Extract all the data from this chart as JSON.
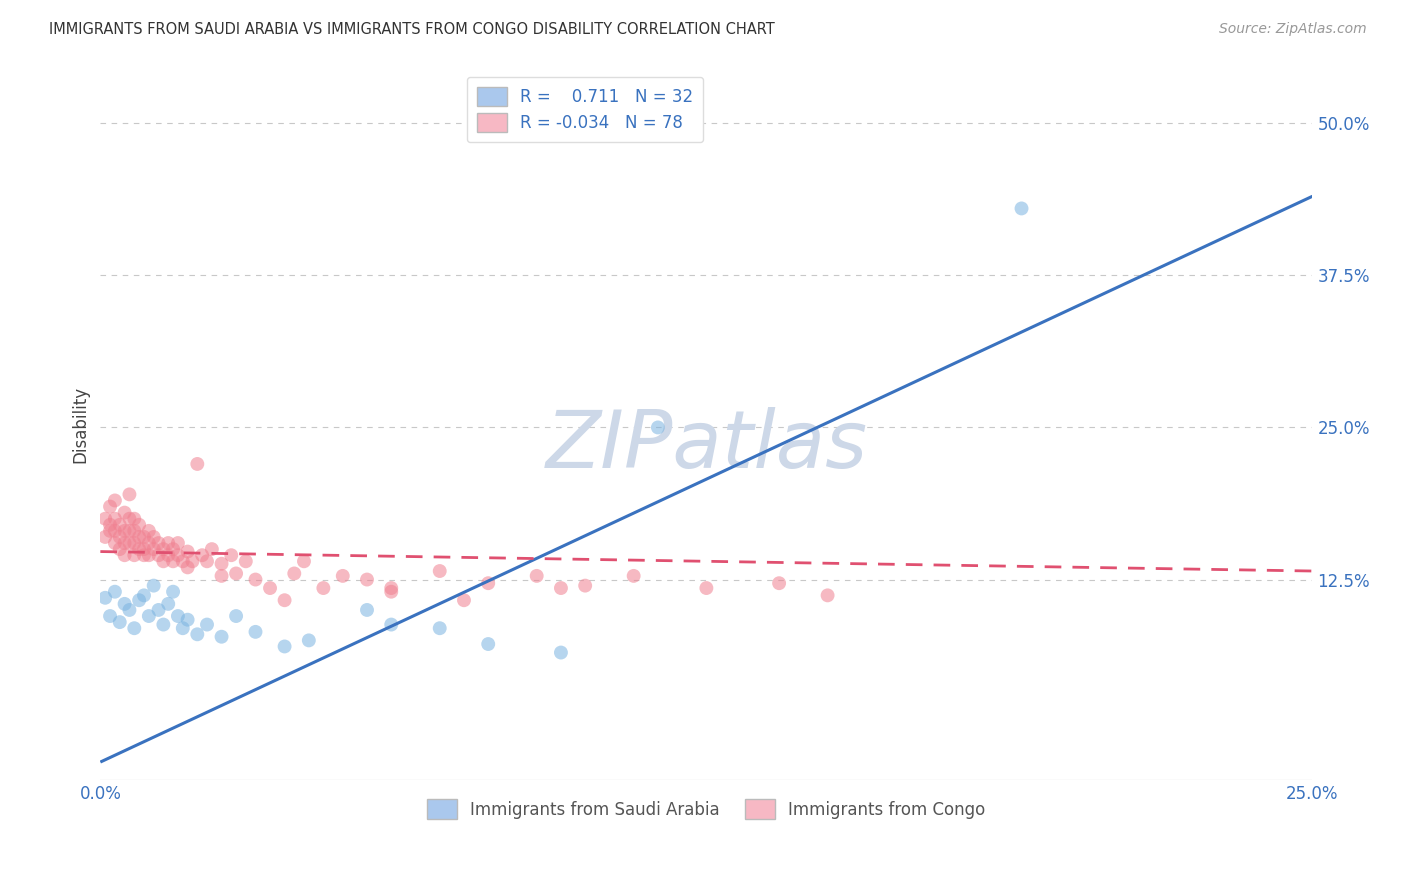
{
  "title": "IMMIGRANTS FROM SAUDI ARABIA VS IMMIGRANTS FROM CONGO DISABILITY CORRELATION CHART",
  "source": "Source: ZipAtlas.com",
  "ylabel": "Disability",
  "ytick_labels": [
    "12.5%",
    "25.0%",
    "37.5%",
    "50.0%"
  ],
  "ytick_values": [
    0.125,
    0.25,
    0.375,
    0.5
  ],
  "xlim": [
    0.0,
    0.25
  ],
  "ylim": [
    -0.04,
    0.545
  ],
  "legend_blue_color": "#aac8ed",
  "legend_pink_color": "#f7b8c4",
  "dot_blue_color": "#7ab3e0",
  "dot_pink_color": "#f08090",
  "line_blue_color": "#3a72bf",
  "line_pink_color": "#e05070",
  "watermark_color": "#cdd8e8",
  "background_color": "#ffffff",
  "grid_color": "#c8c8c8",
  "blue_line_x0": 0.0,
  "blue_line_y0": -0.025,
  "blue_line_x1": 0.25,
  "blue_line_y1": 0.44,
  "pink_line_x0": 0.0,
  "pink_line_y0": 0.148,
  "pink_line_x1": 0.25,
  "pink_line_y1": 0.132,
  "saudi_x": [
    0.001,
    0.002,
    0.003,
    0.004,
    0.005,
    0.006,
    0.007,
    0.008,
    0.009,
    0.01,
    0.011,
    0.012,
    0.013,
    0.014,
    0.015,
    0.016,
    0.017,
    0.018,
    0.02,
    0.022,
    0.025,
    0.028,
    0.032,
    0.038,
    0.043,
    0.055,
    0.06,
    0.07,
    0.08,
    0.095,
    0.19,
    0.115
  ],
  "saudi_y": [
    0.11,
    0.095,
    0.115,
    0.09,
    0.105,
    0.1,
    0.085,
    0.108,
    0.112,
    0.095,
    0.12,
    0.1,
    0.088,
    0.105,
    0.115,
    0.095,
    0.085,
    0.092,
    0.08,
    0.088,
    0.078,
    0.095,
    0.082,
    0.07,
    0.075,
    0.1,
    0.088,
    0.085,
    0.072,
    0.065,
    0.43,
    0.25
  ],
  "congo_x": [
    0.001,
    0.001,
    0.002,
    0.002,
    0.002,
    0.003,
    0.003,
    0.003,
    0.003,
    0.004,
    0.004,
    0.004,
    0.005,
    0.005,
    0.005,
    0.005,
    0.006,
    0.006,
    0.006,
    0.006,
    0.007,
    0.007,
    0.007,
    0.007,
    0.008,
    0.008,
    0.008,
    0.009,
    0.009,
    0.009,
    0.01,
    0.01,
    0.01,
    0.011,
    0.011,
    0.012,
    0.012,
    0.013,
    0.013,
    0.014,
    0.014,
    0.015,
    0.015,
    0.016,
    0.016,
    0.017,
    0.018,
    0.018,
    0.019,
    0.02,
    0.021,
    0.022,
    0.023,
    0.025,
    0.025,
    0.027,
    0.028,
    0.03,
    0.032,
    0.035,
    0.038,
    0.04,
    0.042,
    0.046,
    0.05,
    0.055,
    0.06,
    0.07,
    0.08,
    0.09,
    0.095,
    0.1,
    0.11,
    0.125,
    0.14,
    0.15,
    0.06,
    0.075
  ],
  "congo_y": [
    0.175,
    0.16,
    0.185,
    0.165,
    0.17,
    0.19,
    0.155,
    0.175,
    0.165,
    0.15,
    0.17,
    0.16,
    0.18,
    0.155,
    0.165,
    0.145,
    0.175,
    0.155,
    0.165,
    0.195,
    0.155,
    0.165,
    0.145,
    0.175,
    0.15,
    0.16,
    0.17,
    0.145,
    0.16,
    0.15,
    0.165,
    0.145,
    0.155,
    0.15,
    0.16,
    0.145,
    0.155,
    0.15,
    0.14,
    0.155,
    0.145,
    0.15,
    0.14,
    0.145,
    0.155,
    0.14,
    0.148,
    0.135,
    0.14,
    0.22,
    0.145,
    0.14,
    0.15,
    0.138,
    0.128,
    0.145,
    0.13,
    0.14,
    0.125,
    0.118,
    0.108,
    0.13,
    0.14,
    0.118,
    0.128,
    0.125,
    0.118,
    0.132,
    0.122,
    0.128,
    0.118,
    0.12,
    0.128,
    0.118,
    0.122,
    0.112,
    0.115,
    0.108
  ]
}
